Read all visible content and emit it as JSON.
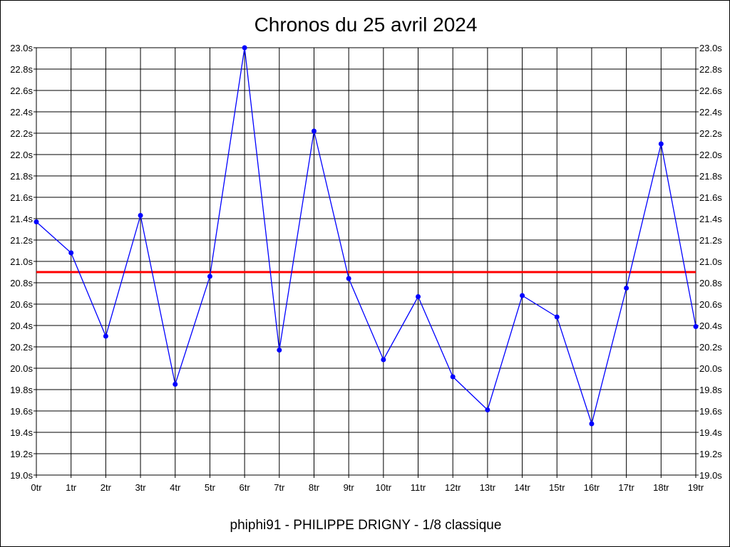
{
  "chart_data": {
    "type": "line",
    "title": "Chronos du 25 avril 2024",
    "footer": "phiphi91 - PHILIPPE DRIGNY - 1/8 classique",
    "x_tick_labels": [
      "0tr",
      "1tr",
      "2tr",
      "3tr",
      "4tr",
      "5tr",
      "6tr",
      "7tr",
      "8tr",
      "9tr",
      "10tr",
      "11tr",
      "12tr",
      "13tr",
      "14tr",
      "15tr",
      "16tr",
      "17tr",
      "18tr",
      "19tr"
    ],
    "y_tick_labels": [
      "19.0s",
      "19.2s",
      "19.4s",
      "19.6s",
      "19.8s",
      "20.0s",
      "20.2s",
      "20.4s",
      "20.6s",
      "20.8s",
      "21.0s",
      "21.2s",
      "21.4s",
      "21.6s",
      "21.8s",
      "22.0s",
      "22.2s",
      "22.4s",
      "22.6s",
      "22.8s",
      "23.0s"
    ],
    "y_ticks": [
      19.0,
      19.2,
      19.4,
      19.6,
      19.8,
      20.0,
      20.2,
      20.4,
      20.6,
      20.8,
      21.0,
      21.2,
      21.4,
      21.6,
      21.8,
      22.0,
      22.2,
      22.4,
      22.6,
      22.8,
      23.0
    ],
    "ylim": [
      19.0,
      23.0
    ],
    "x": [
      0,
      1,
      2,
      3,
      4,
      5,
      6,
      7,
      8,
      9,
      10,
      11,
      12,
      13,
      14,
      15,
      16,
      17,
      18,
      19
    ],
    "series": [
      {
        "color": "#0000ff",
        "values": [
          21.37,
          21.08,
          20.3,
          21.43,
          19.85,
          20.86,
          23.0,
          20.17,
          22.22,
          20.84,
          20.08,
          20.67,
          19.92,
          19.61,
          20.68,
          20.48,
          19.48,
          20.75,
          22.1,
          20.39
        ]
      }
    ],
    "reference_line": {
      "value": 20.9,
      "color": "#ff0000"
    },
    "grid": true,
    "grid_color": "#000000",
    "right_axis_labels": true
  }
}
